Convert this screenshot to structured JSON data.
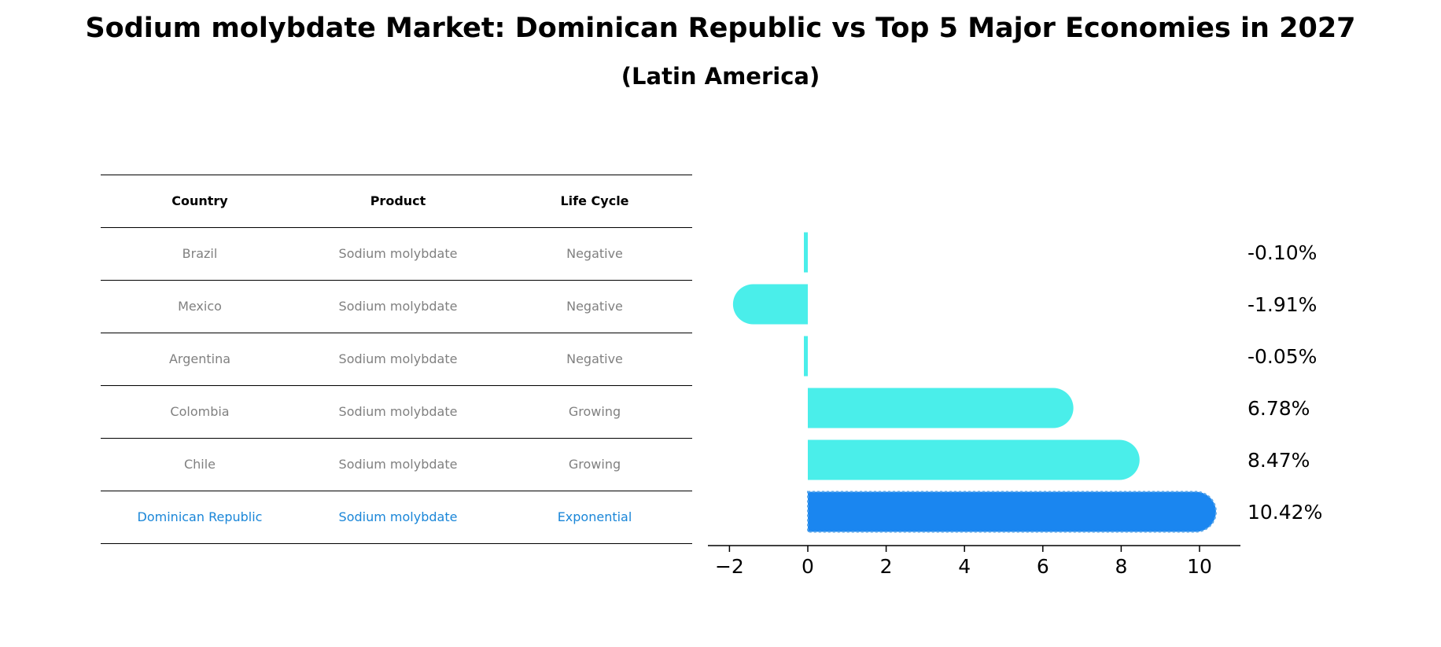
{
  "title": "Sodium molybdate Market: Dominican Republic vs Top 5 Major Economies in 2027",
  "subtitle": "(Latin America)",
  "table": {
    "headers": [
      "Country",
      "Product",
      "Life Cycle"
    ],
    "rows": [
      {
        "country": "Brazil",
        "product": "Sodium molybdate",
        "life_cycle": "Negative"
      },
      {
        "country": "Mexico",
        "product": "Sodium molybdate",
        "life_cycle": "Negative"
      },
      {
        "country": "Argentina",
        "product": "Sodium molybdate",
        "life_cycle": "Negative"
      },
      {
        "country": "Colombia",
        "product": "Sodium molybdate",
        "life_cycle": "Growing"
      },
      {
        "country": "Chile",
        "product": "Sodium molybdate",
        "life_cycle": "Growing"
      },
      {
        "country": "Dominican Republic",
        "product": "Sodium molybdate",
        "life_cycle": "Exponential"
      }
    ]
  },
  "chart_data": {
    "type": "bar",
    "orientation": "horizontal",
    "categories": [
      "Brazil",
      "Mexico",
      "Argentina",
      "Colombia",
      "Chile",
      "Dominican Republic"
    ],
    "values": [
      -0.1,
      -1.91,
      -0.05,
      6.78,
      8.47,
      10.42
    ],
    "value_labels": [
      "-0.10%",
      "-1.91%",
      "-0.05%",
      "6.78%",
      "8.47%",
      "10.42%"
    ],
    "highlight_category": "Dominican Republic",
    "xlim": [
      -2.5,
      11
    ],
    "xticks": [
      -2,
      0,
      2,
      4,
      6,
      8,
      10
    ],
    "xtick_labels": [
      "−2",
      "0",
      "2",
      "4",
      "6",
      "8",
      "10"
    ],
    "colors": {
      "default": "#4aeeea",
      "highlight": "#1a86f0"
    },
    "grid": false
  }
}
